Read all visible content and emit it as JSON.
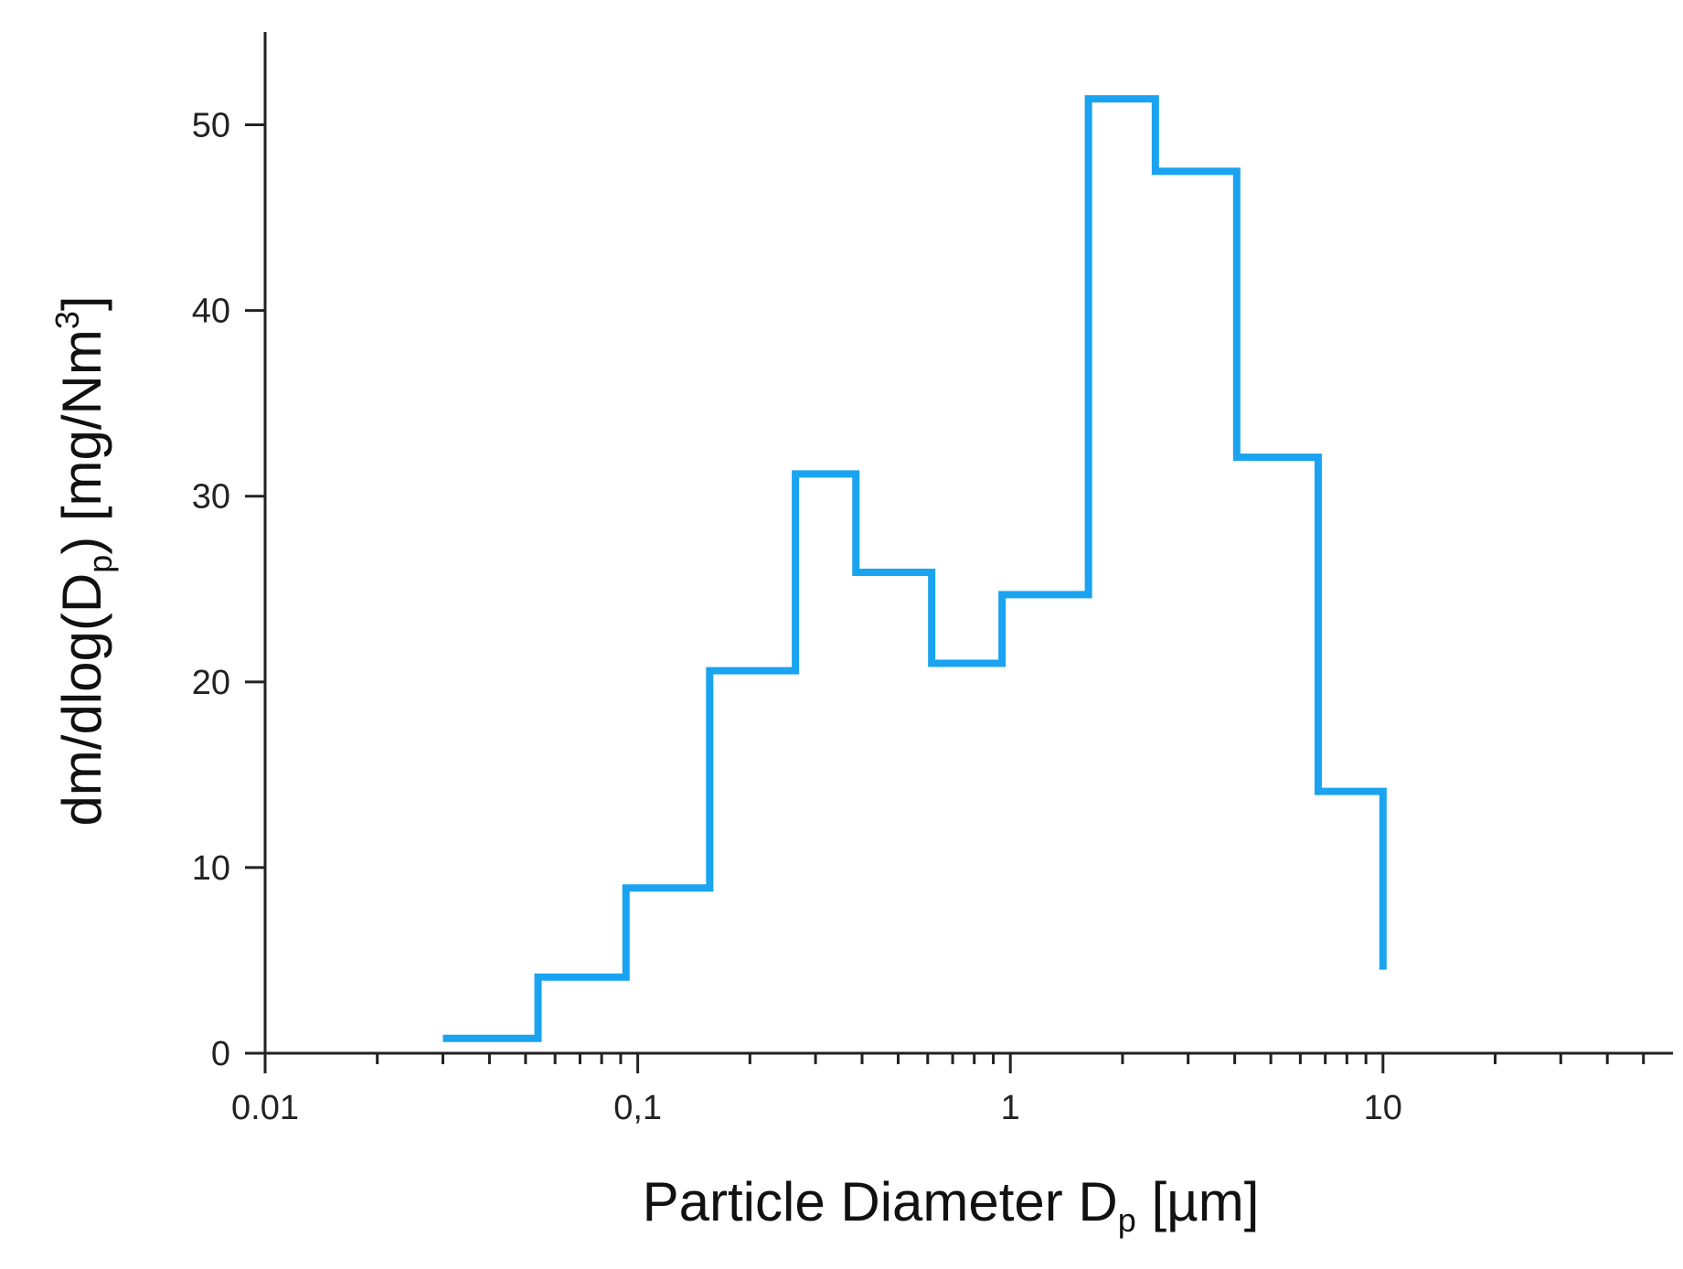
{
  "chart_data": {
    "type": "line",
    "style": "step",
    "title": "",
    "xlabel": {
      "main": "Particle Diameter D",
      "sub": "p",
      "unit": " [µm]"
    },
    "ylabel": {
      "main": "dm/dlog(D",
      "sub": "p",
      "close": ")",
      "unit": " [mg/Nm",
      "sup": "3",
      "end": "]"
    },
    "xscale": "log",
    "xlim": [
      0.01,
      60
    ],
    "ylim": [
      0,
      55
    ],
    "x_ticks": [
      {
        "value": 0.01,
        "label": "0.01"
      },
      {
        "value": 0.1,
        "label": "0,1"
      },
      {
        "value": 1,
        "label": "1"
      },
      {
        "value": 10,
        "label": "10"
      }
    ],
    "y_ticks": [
      {
        "value": 0,
        "label": "0"
      },
      {
        "value": 10,
        "label": "10"
      },
      {
        "value": 20,
        "label": "20"
      },
      {
        "value": 30,
        "label": "30"
      },
      {
        "value": 40,
        "label": "40"
      },
      {
        "value": 50,
        "label": "50"
      }
    ],
    "grid": false,
    "series": [
      {
        "color": "#1aa3f0",
        "bin_edges": [
          0.03,
          0.054,
          0.093,
          0.156,
          0.265,
          0.385,
          0.615,
          0.95,
          1.62,
          2.45,
          4.05,
          6.7,
          10.0
        ],
        "values": [
          0.8,
          4.1,
          8.9,
          20.6,
          31.2,
          25.9,
          21.0,
          24.7,
          51.4,
          47.5,
          32.1,
          14.1
        ],
        "end_value": 4.5
      }
    ]
  }
}
